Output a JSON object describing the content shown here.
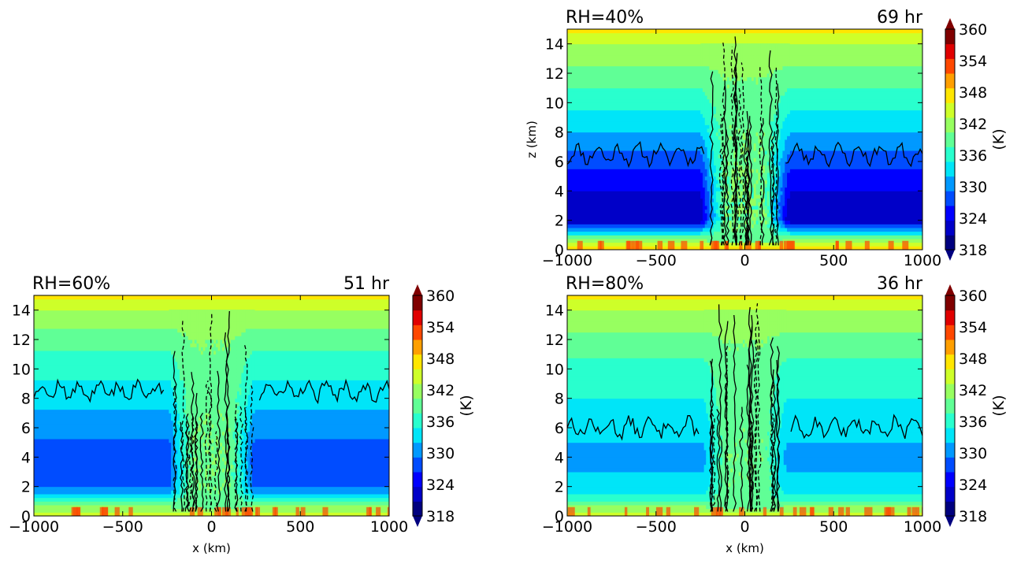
{
  "colors": {
    "levels": [
      "#00007f",
      "#0000c8",
      "#0000ff",
      "#004cff",
      "#0099ff",
      "#00e5f8",
      "#29ffce",
      "#60ff96",
      "#97ff60",
      "#ceff29",
      "#ffe600",
      "#ff9f00",
      "#ff4800",
      "#e00000",
      "#800000"
    ],
    "contour": "#000000"
  },
  "colorbar": {
    "label": "(K)",
    "ticks": [
      "318",
      "324",
      "330",
      "336",
      "342",
      "348",
      "354",
      "360"
    ],
    "range": [
      318,
      360
    ]
  },
  "chart_data": [
    {
      "type": "heatmap",
      "panel_id": "rh40",
      "title_left": "RH=40%",
      "title_right": "69 hr",
      "xlabel": "",
      "ylabel": "z (km)",
      "xlim": [
        -1000,
        1000
      ],
      "ylim": [
        0,
        15
      ],
      "xticks": [
        "−1000",
        "−500",
        "0",
        "500",
        "1000"
      ],
      "yticks": [
        "0",
        "2",
        "4",
        "6",
        "8",
        "10",
        "12",
        "14"
      ],
      "profile": {
        "z": [
          0,
          1,
          2,
          4,
          6,
          8,
          10,
          12,
          13.5,
          14.4,
          15
        ],
        "theta": [
          350,
          338,
          321,
          324,
          328,
          333,
          337,
          341,
          344,
          346,
          350
        ]
      },
      "core_halfwidth_km": 250,
      "core_shift": 6,
      "contours": {
        "env_top_km": 6.5,
        "core_halfwidth_km": 190
      }
    },
    {
      "type": "heatmap",
      "panel_id": "rh60",
      "title_left": "RH=60%",
      "title_right": "51 hr",
      "xlabel": "x (km)",
      "ylabel": "",
      "xlim": [
        -1000,
        1000
      ],
      "ylim": [
        0,
        15
      ],
      "xticks": [
        "−1000",
        "−500",
        "0",
        "500",
        "1000"
      ],
      "yticks": [
        "0",
        "2",
        "4",
        "6",
        "8",
        "10",
        "12",
        "14"
      ],
      "profile": {
        "z": [
          0,
          1,
          2,
          4,
          6,
          8,
          10,
          12,
          13.5,
          14.4,
          15
        ],
        "theta": [
          349,
          338,
          329,
          328,
          331,
          334,
          337,
          340,
          344,
          346,
          350
        ]
      },
      "core_halfwidth_km": 240,
      "core_shift": 5,
      "contours": {
        "env_top_km": 8.5,
        "core_halfwidth_km": 230
      }
    },
    {
      "type": "heatmap",
      "panel_id": "rh80",
      "title_left": "RH=80%",
      "title_right": "36 hr",
      "xlabel": "x (km)",
      "ylabel": "",
      "xlim": [
        -1000,
        1000
      ],
      "ylim": [
        0,
        15
      ],
      "xticks": [
        "−1000",
        "−500",
        "0",
        "500",
        "1000"
      ],
      "yticks": [
        "0",
        "2",
        "4",
        "6",
        "8",
        "10",
        "12",
        "14"
      ],
      "profile": {
        "z": [
          0,
          1,
          2,
          4,
          6,
          8,
          10,
          12,
          13.5,
          14.4,
          15
        ],
        "theta": [
          349,
          338,
          334,
          332,
          334,
          336,
          338,
          341,
          344,
          346,
          350
        ]
      },
      "core_halfwidth_km": 230,
      "core_shift": 5,
      "contours": {
        "env_top_km": 6.0,
        "core_halfwidth_km": 220
      }
    }
  ]
}
